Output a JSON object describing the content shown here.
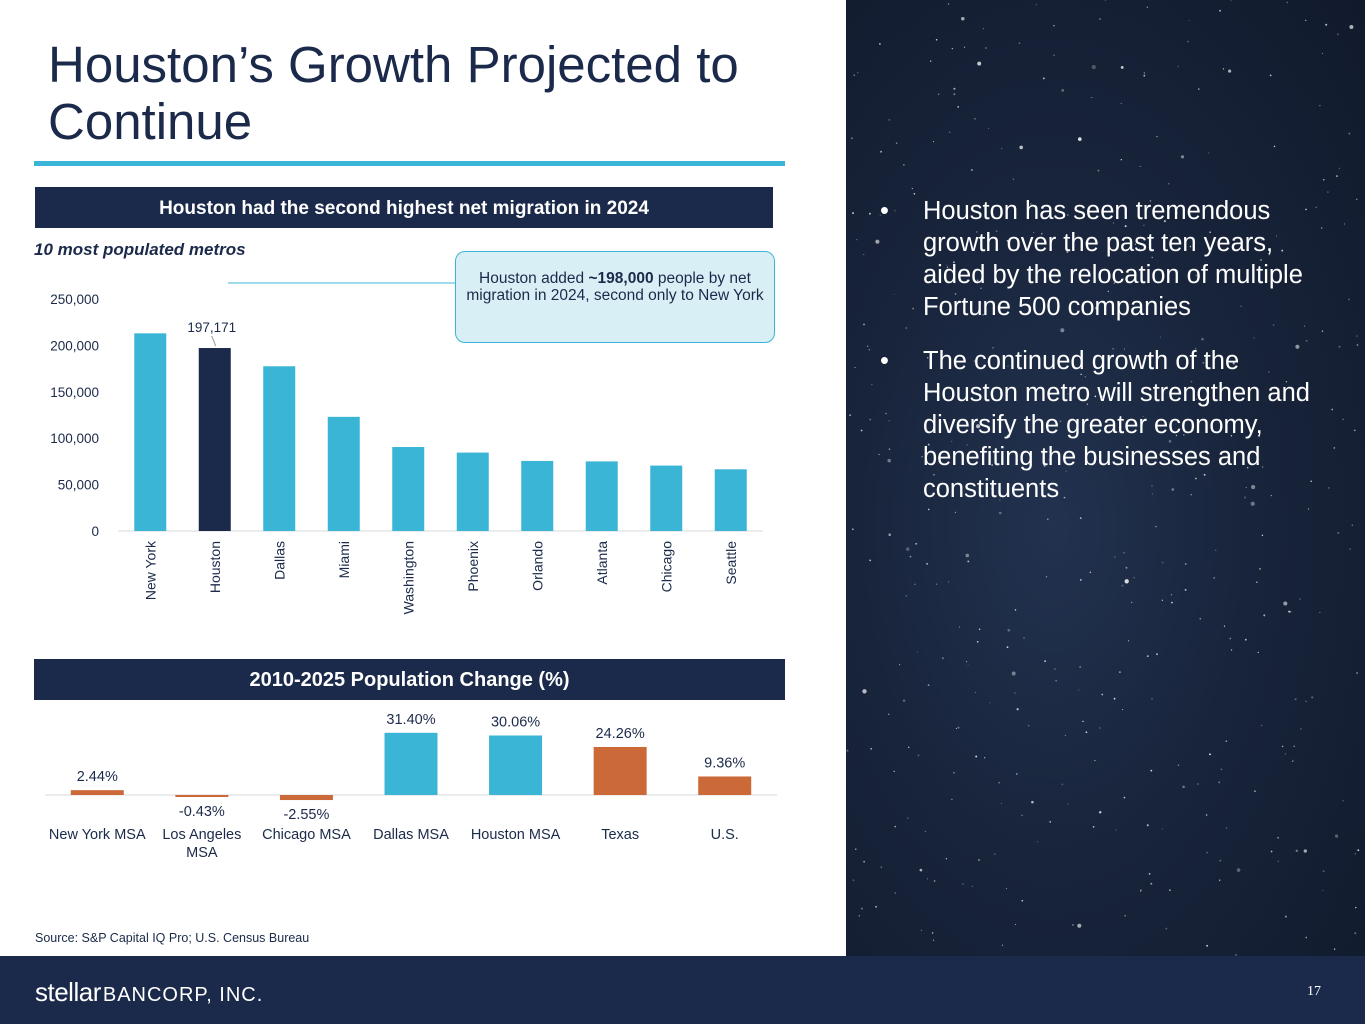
{
  "title": "Houston’s Growth Projected to Continue",
  "band1": "Houston had the second highest net migration in 2024",
  "band2": "2010-2025 Population Change (%)",
  "subtitle": "10 most populated metros",
  "callout": {
    "prefix": "Houston added ",
    "bold": "~198,000",
    "suffix": " people by net migration in 2024, second only to New York"
  },
  "source": "Source: S&P Capital IQ Pro; U.S. Census Bureau",
  "bullets": [
    "Houston has seen tremendous growth over the past ten years, aided by the relocation of multiple Fortune 500 companies",
    "The continued growth of the Houston metro will strengthen and diversify the greater economy, benefiting the businesses and constituents"
  ],
  "bullet_char": "•",
  "footer": {
    "logo_stellar": "stellar",
    "logo_bancorp": "BANCORP, INC.",
    "page_number": "17"
  },
  "colors": {
    "navy": "#1b2a4a",
    "teal": "#3bb5d6",
    "orange": "#cc6939",
    "axis": "#d9d9d9"
  },
  "chart_data": [
    {
      "type": "bar",
      "title": "Houston had the second highest net migration in 2024",
      "subtitle": "10 most populated metros",
      "categories": [
        "New York",
        "Houston",
        "Dallas",
        "Miami",
        "Washington",
        "Phoenix",
        "Orlando",
        "Atlanta",
        "Chicago",
        "Seattle"
      ],
      "values": [
        213000,
        197171,
        177500,
        123000,
        90500,
        84500,
        75500,
        75000,
        70500,
        66500
      ],
      "highlight_index": 1,
      "data_labels": [
        {
          "index": 1,
          "text": "197,171"
        }
      ],
      "ylim": [
        0,
        250000
      ],
      "yticks": [
        0,
        50000,
        100000,
        150000,
        200000,
        250000
      ],
      "ytick_labels": [
        "0",
        "50,000",
        "100,000",
        "150,000",
        "200,000",
        "250,000"
      ],
      "xlabel": "",
      "ylabel": "",
      "grid": false
    },
    {
      "type": "bar",
      "title": "2010-2025 Population Change (%)",
      "categories": [
        "New York MSA",
        "Los Angeles MSA",
        "Chicago MSA",
        "Dallas MSA",
        "Houston MSA",
        "Texas",
        "U.S."
      ],
      "values": [
        2.44,
        -0.43,
        -2.55,
        31.4,
        30.06,
        24.26,
        9.36
      ],
      "labels": [
        "2.44%",
        "-0.43%",
        "-2.55%",
        "31.40%",
        "30.06%",
        "24.26%",
        "9.36%"
      ],
      "bar_colors": [
        "orange",
        "orange",
        "orange",
        "teal",
        "teal",
        "orange",
        "orange"
      ],
      "ylim": [
        -2.55,
        31.4
      ],
      "xlabel": "",
      "ylabel": "",
      "grid": false
    }
  ]
}
